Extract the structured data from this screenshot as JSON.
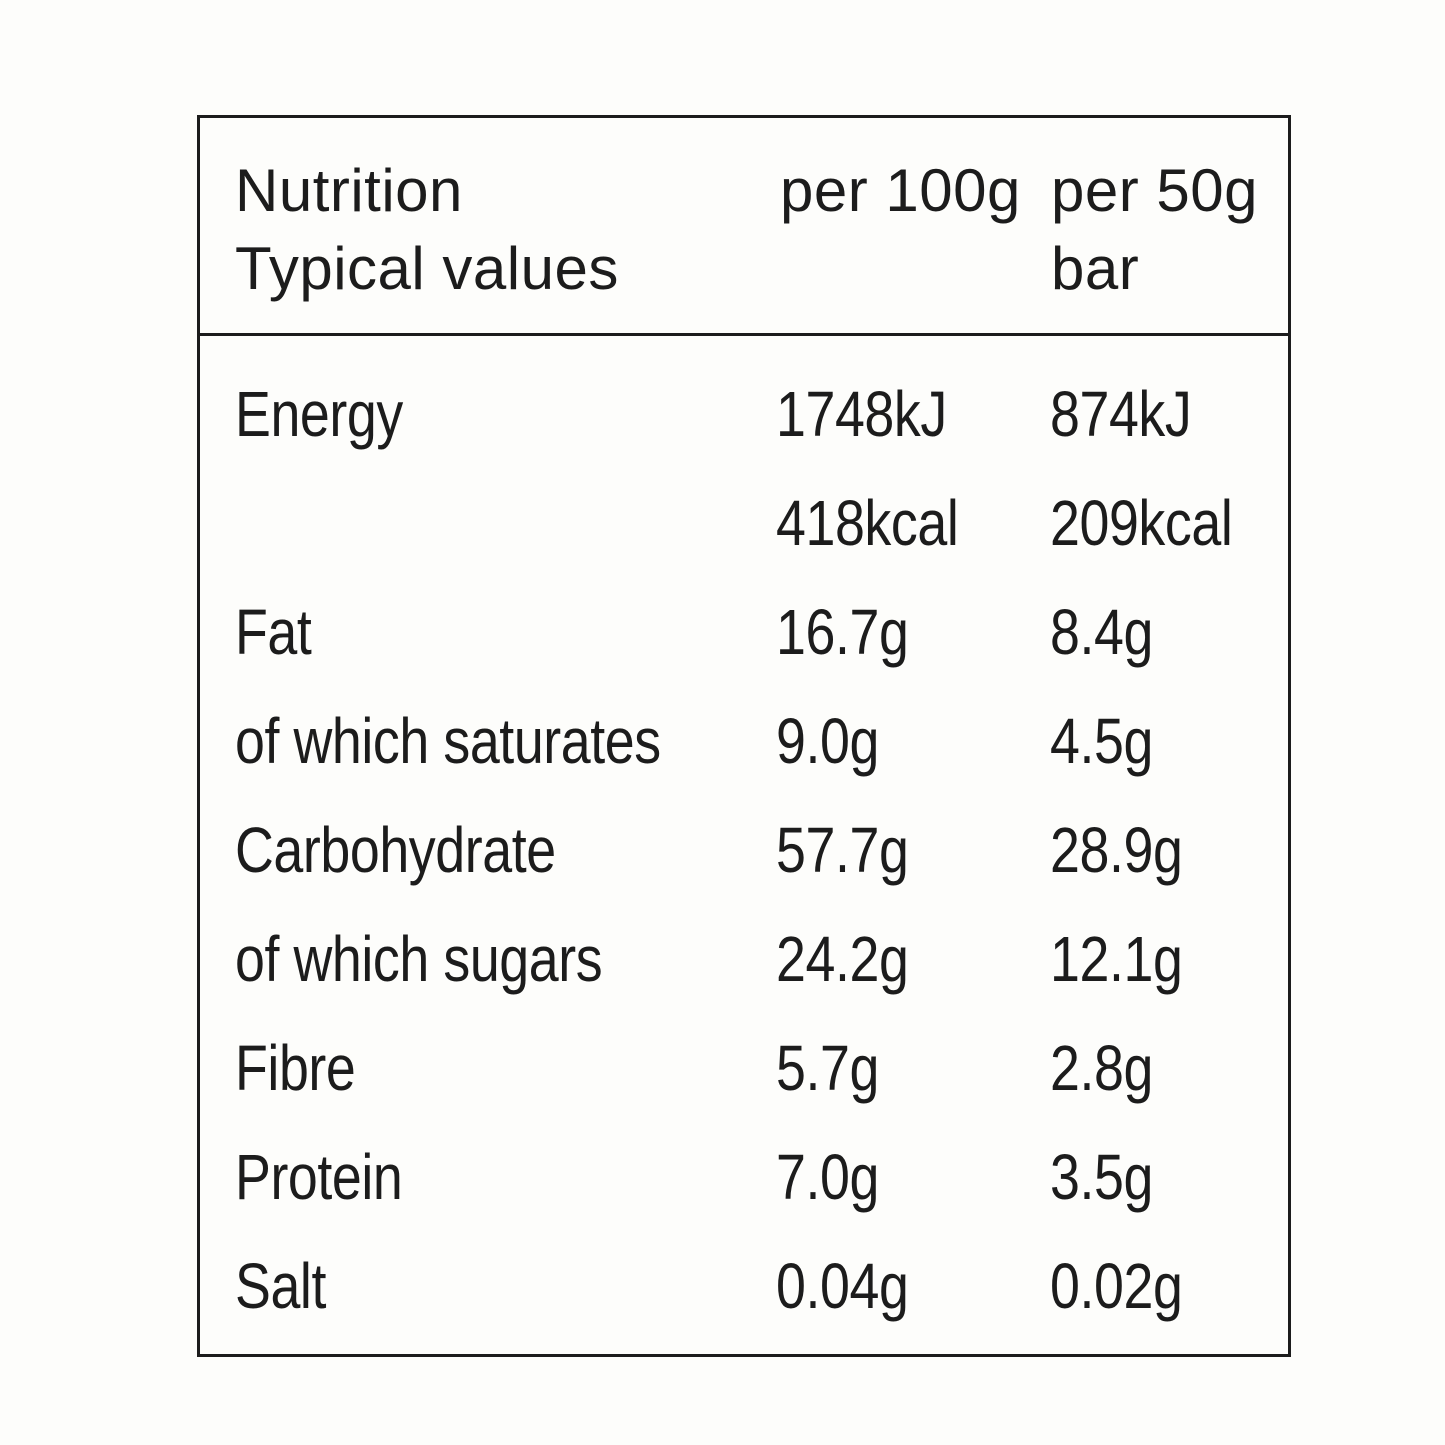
{
  "header": {
    "label_line1": "Nutrition",
    "label_line2": "Typical values",
    "col1_line1": "per 100g",
    "col2_line1": "per 50g",
    "col2_line2": "bar"
  },
  "rows": [
    {
      "label": "Energy",
      "per100g": "1748kJ",
      "per50g": "874kJ"
    },
    {
      "label": "",
      "per100g": "418kcal",
      "per50g": "209kcal"
    },
    {
      "label": "Fat",
      "per100g": "16.7g",
      "per50g": "8.4g"
    },
    {
      "label": "of which saturates",
      "per100g": "9.0g",
      "per50g": "4.5g"
    },
    {
      "label": "Carbohydrate",
      "per100g": "57.7g",
      "per50g": "28.9g"
    },
    {
      "label": "of which sugars",
      "per100g": "24.2g",
      "per50g": "12.1g"
    },
    {
      "label": "Fibre",
      "per100g": "5.7g",
      "per50g": "2.8g"
    },
    {
      "label": "Protein",
      "per100g": "7.0g",
      "per50g": "3.5g"
    },
    {
      "label": "Salt",
      "per100g": "0.04g",
      "per50g": "0.02g"
    }
  ]
}
